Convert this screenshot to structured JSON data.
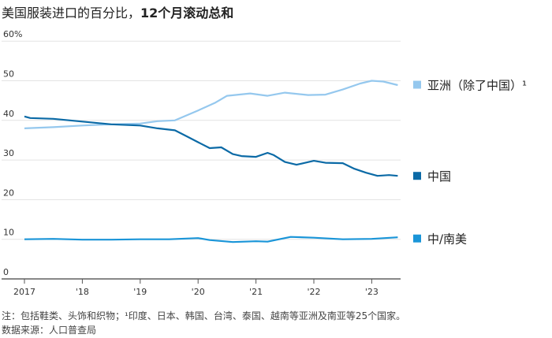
{
  "title_a": "美国服装进口的百分比，",
  "title_b": "12个月滚动总和",
  "note": "注：包括鞋类、头饰和织物；¹印度、日本、韩国、台湾、泰国、越南等亚洲及南亚等25个国家。",
  "source": "数据来源：人口普查局",
  "chart_data": {
    "type": "line",
    "title": "美国服装进口的百分比，12个月滚动总和",
    "ylim": [
      0,
      60
    ],
    "yticks": [
      0,
      10,
      20,
      30,
      40,
      50,
      60
    ],
    "ytick_labels": [
      "0",
      "10",
      "20",
      "30",
      "40",
      "50",
      "60%"
    ],
    "xlim": [
      2017,
      2023.5
    ],
    "xticks": [
      2017,
      2018,
      2019,
      2020,
      2021,
      2022,
      2023
    ],
    "xtick_labels": [
      "2017",
      "'18",
      "'19",
      "'20",
      "'21",
      "'22",
      "'23"
    ],
    "series": [
      {
        "name": "亚洲（除了中国）¹",
        "color": "#95c8ee",
        "x": [
          2017,
          2017.5,
          2018,
          2018.5,
          2019,
          2019.3,
          2019.6,
          2020,
          2020.3,
          2020.5,
          2020.9,
          2021.2,
          2021.5,
          2021.9,
          2022.2,
          2022.5,
          2022.8,
          2023,
          2023.2,
          2023.45
        ],
        "y": [
          38,
          38.3,
          38.7,
          39,
          39.2,
          39.8,
          40,
          42.5,
          44.5,
          46.2,
          46.8,
          46.2,
          47,
          46.4,
          46.5,
          47.8,
          49.3,
          50,
          49.8,
          48.9
        ]
      },
      {
        "name": "中国",
        "color": "#0b6aa6",
        "x": [
          2017,
          2017.1,
          2017.5,
          2018,
          2018.5,
          2019,
          2019.3,
          2019.6,
          2019.8,
          2020,
          2020.2,
          2020.4,
          2020.6,
          2020.75,
          2021,
          2021.2,
          2021.3,
          2021.5,
          2021.7,
          2022,
          2022.2,
          2022.5,
          2022.7,
          2022.9,
          2023.1,
          2023.3,
          2023.45
        ],
        "y": [
          41,
          40.6,
          40.4,
          39.7,
          39,
          38.7,
          38,
          37.5,
          36,
          34.5,
          33,
          33.2,
          31.5,
          31,
          30.8,
          31.8,
          31.3,
          29.5,
          28.8,
          29.8,
          29.3,
          29.2,
          27.8,
          26.8,
          26,
          26.2,
          26
        ]
      },
      {
        "name": "中/南美",
        "color": "#1a95d8",
        "x": [
          2017,
          2017.5,
          2018,
          2018.5,
          2019,
          2019.5,
          2020,
          2020.2,
          2020.6,
          2021,
          2021.2,
          2021.6,
          2022,
          2022.5,
          2023,
          2023.45
        ],
        "y": [
          10,
          10.1,
          9.9,
          9.9,
          10,
          10,
          10.3,
          9.8,
          9.3,
          9.5,
          9.4,
          10.6,
          10.4,
          10,
          10.1,
          10.5
        ]
      }
    ]
  }
}
